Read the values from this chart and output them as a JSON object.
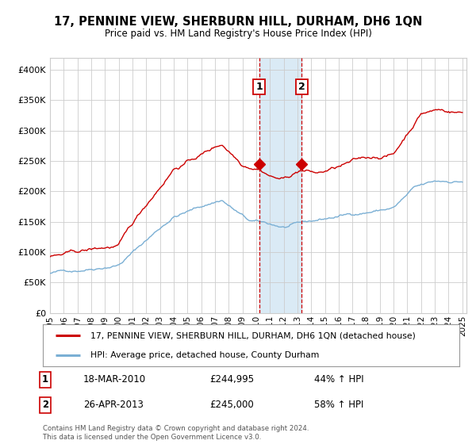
{
  "title": "17, PENNINE VIEW, SHERBURN HILL, DURHAM, DH6 1QN",
  "subtitle": "Price paid vs. HM Land Registry's House Price Index (HPI)",
  "legend_line1": "17, PENNINE VIEW, SHERBURN HILL, DURHAM, DH6 1QN (detached house)",
  "legend_line2": "HPI: Average price, detached house, County Durham",
  "annotation1_date": "18-MAR-2010",
  "annotation1_price": "£244,995",
  "annotation1_hpi": "44% ↑ HPI",
  "annotation2_date": "26-APR-2013",
  "annotation2_price": "£245,000",
  "annotation2_hpi": "58% ↑ HPI",
  "footer": "Contains HM Land Registry data © Crown copyright and database right 2024.\nThis data is licensed under the Open Government Licence v3.0.",
  "red_color": "#cc0000",
  "blue_color": "#7aafd4",
  "background_color": "#ffffff",
  "grid_color": "#cccccc",
  "shade_color": "#daeaf5",
  "ylim": [
    0,
    420000
  ],
  "yticks": [
    0,
    50000,
    100000,
    150000,
    200000,
    250000,
    300000,
    350000,
    400000
  ],
  "year_start": 1995,
  "year_end": 2025,
  "sale1_year": 2010.21,
  "sale2_year": 2013.32,
  "sale1_price": 244995,
  "sale2_price": 245000
}
